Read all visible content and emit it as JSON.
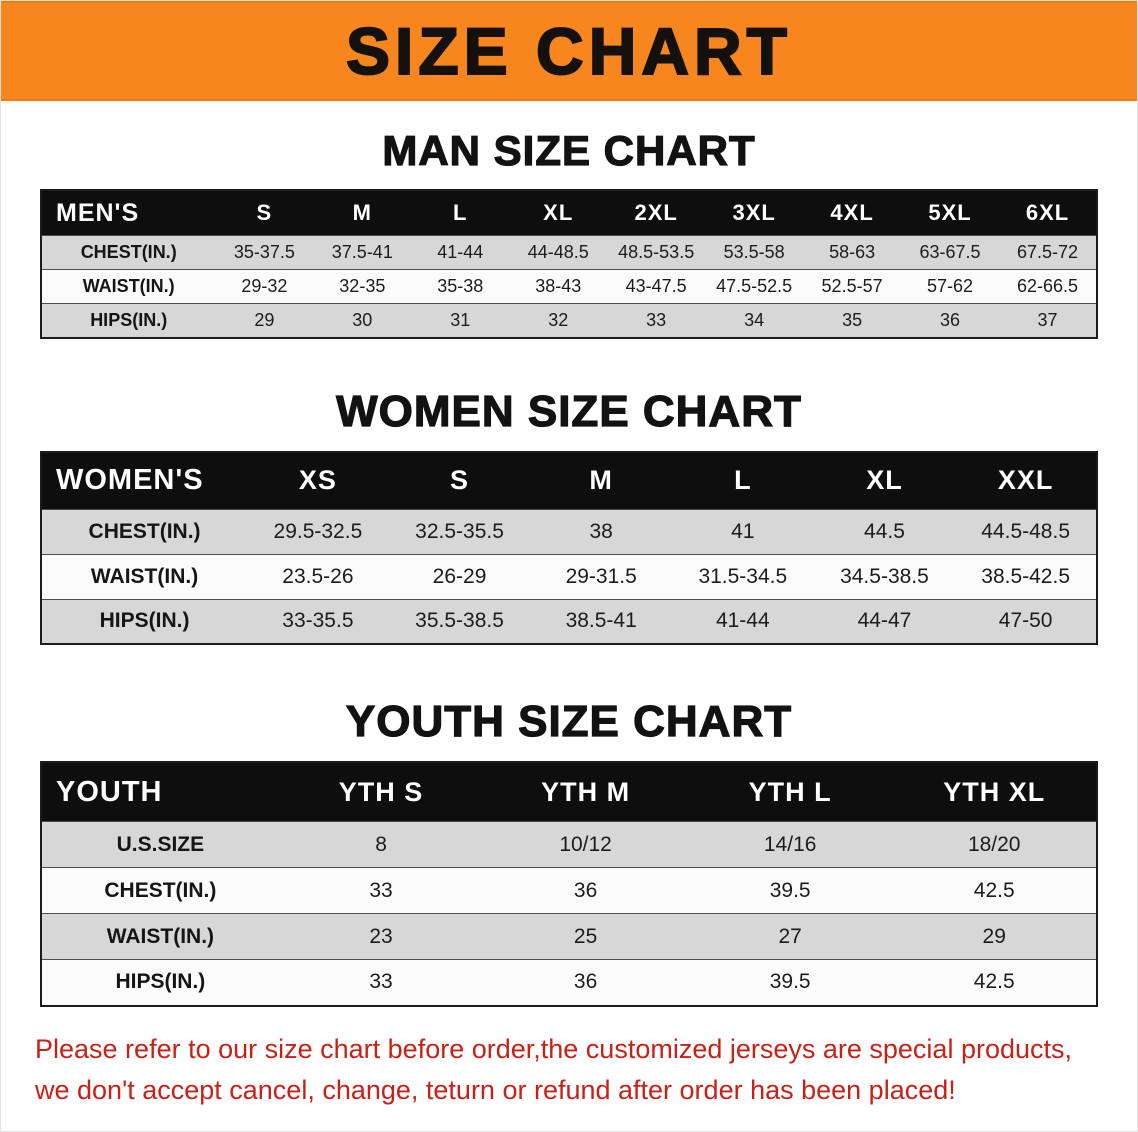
{
  "banner": {
    "title": "SIZE CHART"
  },
  "sections": [
    {
      "heading": "MAN SIZE CHART",
      "table": {
        "header": [
          "MEN'S",
          "S",
          "M",
          "L",
          "XL",
          "2XL",
          "3XL",
          "4XL",
          "5XL",
          "6XL"
        ],
        "rows": [
          {
            "label": "CHEST(IN.)",
            "values": [
              "35-37.5",
              "37.5-41",
              "41-44",
              "44-48.5",
              "48.5-53.5",
              "53.5-58",
              "58-63",
              "63-67.5",
              "67.5-72"
            ]
          },
          {
            "label": "WAIST(IN.)",
            "values": [
              "29-32",
              "32-35",
              "35-38",
              "38-43",
              "43-47.5",
              "47.5-52.5",
              "52.5-57",
              "57-62",
              "62-66.5"
            ]
          },
          {
            "label": "HIPS(IN.)",
            "values": [
              "29",
              "30",
              "31",
              "32",
              "33",
              "34",
              "35",
              "36",
              "37"
            ]
          }
        ]
      }
    },
    {
      "heading": "WOMEN SIZE CHART",
      "table": {
        "header": [
          "WOMEN'S",
          "XS",
          "S",
          "M",
          "L",
          "XL",
          "XXL"
        ],
        "rows": [
          {
            "label": "CHEST(IN.)",
            "values": [
              "29.5-32.5",
              "32.5-35.5",
              "38",
              "41",
              "44.5",
              "44.5-48.5"
            ]
          },
          {
            "label": "WAIST(IN.)",
            "values": [
              "23.5-26",
              "26-29",
              "29-31.5",
              "31.5-34.5",
              "34.5-38.5",
              "38.5-42.5"
            ]
          },
          {
            "label": "HIPS(IN.)",
            "values": [
              "33-35.5",
              "35.5-38.5",
              "38.5-41",
              "41-44",
              "44-47",
              "47-50"
            ]
          }
        ]
      }
    },
    {
      "heading": "YOUTH SIZE CHART",
      "table": {
        "header": [
          "YOUTH",
          "YTH S",
          "YTH M",
          "YTH L",
          "YTH XL"
        ],
        "rows": [
          {
            "label": "U.S.SIZE",
            "values": [
              "8",
              "10/12",
              "14/16",
              "18/20"
            ]
          },
          {
            "label": "CHEST(IN.)",
            "values": [
              "33",
              "36",
              "39.5",
              "42.5"
            ]
          },
          {
            "label": "WAIST(IN.)",
            "values": [
              "23",
              "25",
              "27",
              "29"
            ]
          },
          {
            "label": "HIPS(IN.)",
            "values": [
              "33",
              "36",
              "39.5",
              "42.5"
            ]
          }
        ]
      }
    }
  ],
  "disclaimer": {
    "lines": [
      "Please refer to our size chart before order,the customized jerseys are special products,",
      "we don't accept cancel, change, teturn or refund after order has been placed!"
    ]
  },
  "colors": {
    "banner_orange": "#f6861d",
    "table_header_black": "#0e0e0e",
    "row_alt_gray": "#d7d7d7",
    "disclaimer_red": "#cb2015"
  }
}
